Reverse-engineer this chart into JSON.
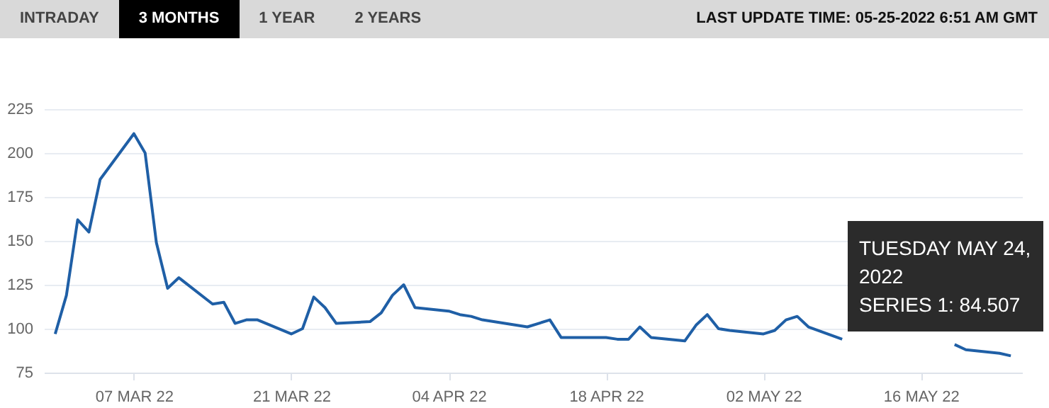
{
  "chart_data": {
    "type": "line",
    "annotations": [
      "INTRADAY",
      "3 MONTHS",
      "1 YEAR",
      "2 YEARS",
      "LAST UPDATE TIME: 05-25-2022 6:51 AM GMT",
      "TUESDAY MAY 24, 2022",
      "SERIES 1: 84.507"
    ],
    "x": [
      "2022-02-28",
      "2022-03-01",
      "2022-03-02",
      "2022-03-03",
      "2022-03-04",
      "2022-03-07",
      "2022-03-08",
      "2022-03-09",
      "2022-03-10",
      "2022-03-11",
      "2022-03-14",
      "2022-03-15",
      "2022-03-16",
      "2022-03-17",
      "2022-03-18",
      "2022-03-21",
      "2022-03-22",
      "2022-03-23",
      "2022-03-24",
      "2022-03-25",
      "2022-03-28",
      "2022-03-29",
      "2022-03-30",
      "2022-03-31",
      "2022-04-01",
      "2022-04-04",
      "2022-04-05",
      "2022-04-06",
      "2022-04-07",
      "2022-04-08",
      "2022-04-11",
      "2022-04-12",
      "2022-04-13",
      "2022-04-14",
      "2022-04-18",
      "2022-04-19",
      "2022-04-20",
      "2022-04-21",
      "2022-04-22",
      "2022-04-25",
      "2022-04-26",
      "2022-04-27",
      "2022-04-28",
      "2022-04-29",
      "2022-05-02",
      "2022-05-03",
      "2022-05-04",
      "2022-05-05",
      "2022-05-06",
      "2022-05-09",
      "2022-05-10",
      "2022-05-11",
      "2022-05-12",
      "2022-05-13",
      "2022-05-16",
      "2022-05-17",
      "2022-05-18",
      "2022-05-19",
      "2022-05-20",
      "2022-05-23",
      "2022-05-24"
    ],
    "series": [
      {
        "color": "#1f5fa6",
        "values": [
          97,
          119,
          162,
          155,
          185,
          211,
          200,
          149,
          123,
          129,
          114,
          115,
          103,
          105,
          105,
          97,
          100,
          118,
          112,
          103,
          104,
          109,
          119,
          125,
          112,
          110,
          108,
          107,
          105,
          104,
          101,
          103,
          105,
          95,
          95,
          94,
          94,
          101,
          95,
          93,
          102,
          108,
          100,
          99,
          97,
          99,
          105,
          107,
          101,
          94,
          null,
          null,
          null,
          null,
          null,
          null,
          null,
          91,
          88,
          86,
          84.507
        ]
      }
    ],
    "xlim": [
      "2022-02-27",
      "2022-05-25"
    ],
    "xticks": [
      {
        "value": "2022-03-07",
        "label": "07 MAR 22"
      },
      {
        "value": "2022-03-21",
        "label": "21 MAR 22"
      },
      {
        "value": "2022-04-04",
        "label": "04 APR 22"
      },
      {
        "value": "2022-04-18",
        "label": "18 APR 22"
      },
      {
        "value": "2022-05-02",
        "label": "02 MAY 22"
      },
      {
        "value": "2022-05-16",
        "label": "16 MAY 22"
      }
    ],
    "ylim": [
      75,
      225
    ],
    "yticks": [
      75,
      100,
      125,
      150,
      175,
      200,
      225
    ],
    "grid": "y",
    "marker": "none",
    "line_style": "solid"
  }
}
